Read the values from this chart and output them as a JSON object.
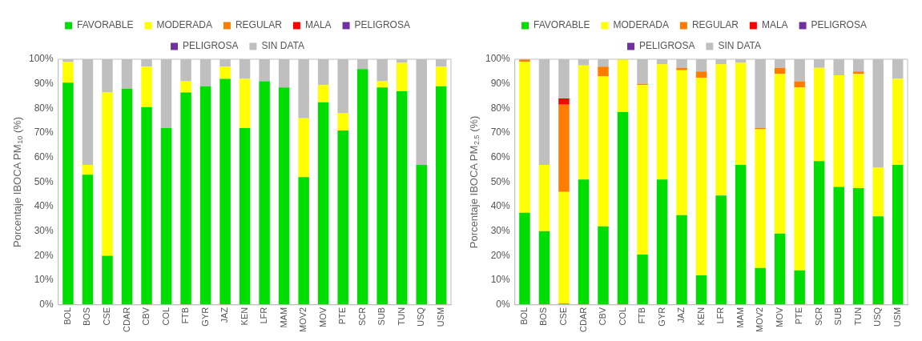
{
  "chart_data": [
    {
      "type": "bar",
      "stacked": true,
      "ylabel": "Porcentaje IBOCA PM$_{10}$ (%)",
      "legend": "top",
      "grid": false,
      "categories": [
        "BOL",
        "BOS",
        "CSE",
        "CDAR",
        "CBV",
        "COL",
        "FTB",
        "GYR",
        "JAZ",
        "KEN",
        "LFR",
        "MAM",
        "MOV2",
        "MOV",
        "PTE",
        "SCR",
        "SUB",
        "TUN",
        "USQ",
        "USM"
      ],
      "ylim": [
        0,
        100
      ],
      "yticks": [
        {
          "value": 0,
          "label": "0%"
        },
        {
          "value": 10,
          "label": "10%"
        },
        {
          "value": 20,
          "label": "20%"
        },
        {
          "value": 30,
          "label": "30%"
        },
        {
          "value": 40,
          "label": "40%"
        },
        {
          "value": 50,
          "label": "50%"
        },
        {
          "value": 60,
          "label": "60%"
        },
        {
          "value": 70,
          "label": "70%"
        },
        {
          "value": 80,
          "label": "80%"
        },
        {
          "value": 90,
          "label": "90%"
        },
        {
          "value": 100,
          "label": "100%"
        }
      ],
      "series": [
        {
          "name": "FAVORABLE",
          "color": "#00dd00",
          "values": [
            90.5,
            53,
            20,
            88,
            80.5,
            72,
            86.5,
            89,
            92,
            72,
            91,
            88.5,
            52,
            82.5,
            71,
            96,
            88.5,
            87,
            57,
            89
          ]
        },
        {
          "name": "MODERADA",
          "color": "#ffff00",
          "values": [
            8.5,
            4,
            66.5,
            0,
            16.5,
            0,
            4.5,
            0,
            5,
            20,
            0,
            0,
            24,
            7,
            7,
            0,
            2.5,
            11.5,
            0,
            8
          ]
        },
        {
          "name": "REGULAR",
          "color": "#ff7c00",
          "values": [
            0,
            0,
            0,
            0,
            0,
            0,
            0,
            0,
            0,
            0,
            0,
            0,
            0,
            0,
            0,
            0,
            0,
            0,
            0,
            0
          ]
        },
        {
          "name": "MALA",
          "color": "#ff0000",
          "values": [
            0,
            0,
            0,
            0,
            0,
            0,
            0,
            0,
            0,
            0,
            0,
            0,
            0,
            0,
            0,
            0,
            0,
            0,
            0,
            0
          ]
        },
        {
          "name": "PELIGROSA",
          "color": "#7030a0",
          "values": [
            0,
            0,
            0,
            0,
            0,
            0,
            0,
            0,
            0,
            0,
            0,
            0,
            0,
            0,
            0,
            0,
            0,
            0,
            0,
            0
          ]
        },
        {
          "name": "PELIGROSA",
          "color": "#7030a0",
          "values": [
            0,
            0,
            0,
            0,
            0,
            0,
            0,
            0,
            0,
            0,
            0,
            0,
            0,
            0,
            0,
            0,
            0,
            0,
            0,
            0
          ]
        },
        {
          "name": "SIN DATA",
          "color": "#bfbfbf",
          "values": [
            1,
            43,
            13.5,
            12,
            3,
            28,
            9,
            11,
            3,
            8,
            9,
            11.5,
            24,
            10.5,
            22,
            4,
            9,
            1.5,
            43,
            3
          ]
        }
      ]
    },
    {
      "type": "bar",
      "stacked": true,
      "ylabel": "Porcentaje IBOCA PM$_{2.5}$ (%)",
      "legend": "top",
      "grid": false,
      "categories": [
        "BOL",
        "BOS",
        "CSE",
        "CDAR",
        "CBV",
        "COL",
        "FTB",
        "GYR",
        "JAZ",
        "KEN",
        "LFR",
        "MAM",
        "MOV2",
        "MOV",
        "PTE",
        "SCR",
        "SUB",
        "TUN",
        "USQ",
        "USM"
      ],
      "ylim": [
        0,
        100
      ],
      "yticks": [
        {
          "value": 0,
          "label": "0%"
        },
        {
          "value": 10,
          "label": "10%"
        },
        {
          "value": 20,
          "label": "20%"
        },
        {
          "value": 30,
          "label": "30%"
        },
        {
          "value": 40,
          "label": "40%"
        },
        {
          "value": 50,
          "label": "50%"
        },
        {
          "value": 60,
          "label": "60%"
        },
        {
          "value": 70,
          "label": "70%"
        },
        {
          "value": 80,
          "label": "80%"
        },
        {
          "value": 90,
          "label": "90%"
        },
        {
          "value": 100,
          "label": "100%"
        }
      ],
      "series": [
        {
          "name": "FAVORABLE",
          "color": "#00dd00",
          "values": [
            37.5,
            30,
            0.5,
            51,
            32,
            78.5,
            20.5,
            51,
            36.5,
            12,
            44.5,
            57,
            15,
            29,
            14,
            58.5,
            48,
            47.5,
            36,
            57
          ]
        },
        {
          "name": "MODERADA",
          "color": "#ffff00",
          "values": [
            61.5,
            27,
            45.5,
            46.5,
            61,
            21.5,
            69,
            47,
            59,
            80.5,
            53.5,
            41.5,
            56.5,
            65,
            74.5,
            38,
            45.5,
            46.5,
            20,
            35
          ]
        },
        {
          "name": "REGULAR",
          "color": "#ff7c00",
          "values": [
            1,
            0,
            35.5,
            0,
            4,
            0,
            0.5,
            0,
            1,
            2.5,
            0,
            0,
            0.5,
            2.5,
            2.5,
            0,
            0,
            1,
            0,
            0
          ]
        },
        {
          "name": "MALA",
          "color": "#ff0000",
          "values": [
            0,
            0,
            2.5,
            0,
            0,
            0,
            0,
            0,
            0,
            0,
            0,
            0,
            0,
            0,
            0,
            0,
            0,
            0,
            0,
            0
          ]
        },
        {
          "name": "PELIGROSA",
          "color": "#7030a0",
          "values": [
            0,
            0,
            0,
            0,
            0,
            0,
            0,
            0,
            0,
            0,
            0,
            0,
            0,
            0,
            0,
            0,
            0,
            0,
            0,
            0
          ]
        },
        {
          "name": "PELIGROSA",
          "color": "#7030a0",
          "values": [
            0,
            0,
            0,
            0,
            0,
            0,
            0,
            0,
            0,
            0,
            0,
            0,
            0,
            0,
            0,
            0,
            0,
            0,
            0,
            0
          ]
        },
        {
          "name": "SIN DATA",
          "color": "#bfbfbf",
          "values": [
            0,
            43,
            16,
            2.5,
            3,
            0,
            10,
            2,
            3.5,
            5,
            2,
            1.5,
            28,
            3.5,
            9,
            3.5,
            6.5,
            5,
            44,
            8
          ]
        }
      ]
    }
  ]
}
